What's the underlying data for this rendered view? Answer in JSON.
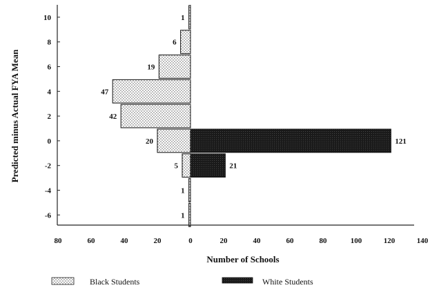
{
  "chart_data": {
    "type": "bar",
    "orientation": "horizontal-back-to-back",
    "xlabel": "Number of Schools",
    "ylabel": "Predicted minus Actual FYA Mean",
    "y_categories": [
      10,
      8,
      6,
      4,
      2,
      0,
      -2,
      -4,
      -6
    ],
    "series": [
      {
        "name": "Black Students",
        "side": "left",
        "color": "#e8e8e8",
        "pattern": "dotted",
        "values": [
          1,
          6,
          19,
          47,
          42,
          20,
          5,
          1,
          1
        ]
      },
      {
        "name": "White Students",
        "side": "right",
        "color": "#1a1a1a",
        "pattern": "solid",
        "values": [
          null,
          null,
          null,
          null,
          null,
          121,
          21,
          null,
          null
        ]
      }
    ],
    "x_ticks": [
      "80",
      "60",
      "40",
      "20",
      "0",
      "20",
      "40",
      "60",
      "80",
      "100",
      "120",
      "140"
    ],
    "y_ticks": [
      "10",
      "8",
      "6",
      "4",
      "2",
      "0",
      "-2",
      "-4",
      "-6"
    ],
    "xlim_left": 80,
    "xlim_right": 140,
    "grid": false,
    "legend_position": "bottom"
  }
}
